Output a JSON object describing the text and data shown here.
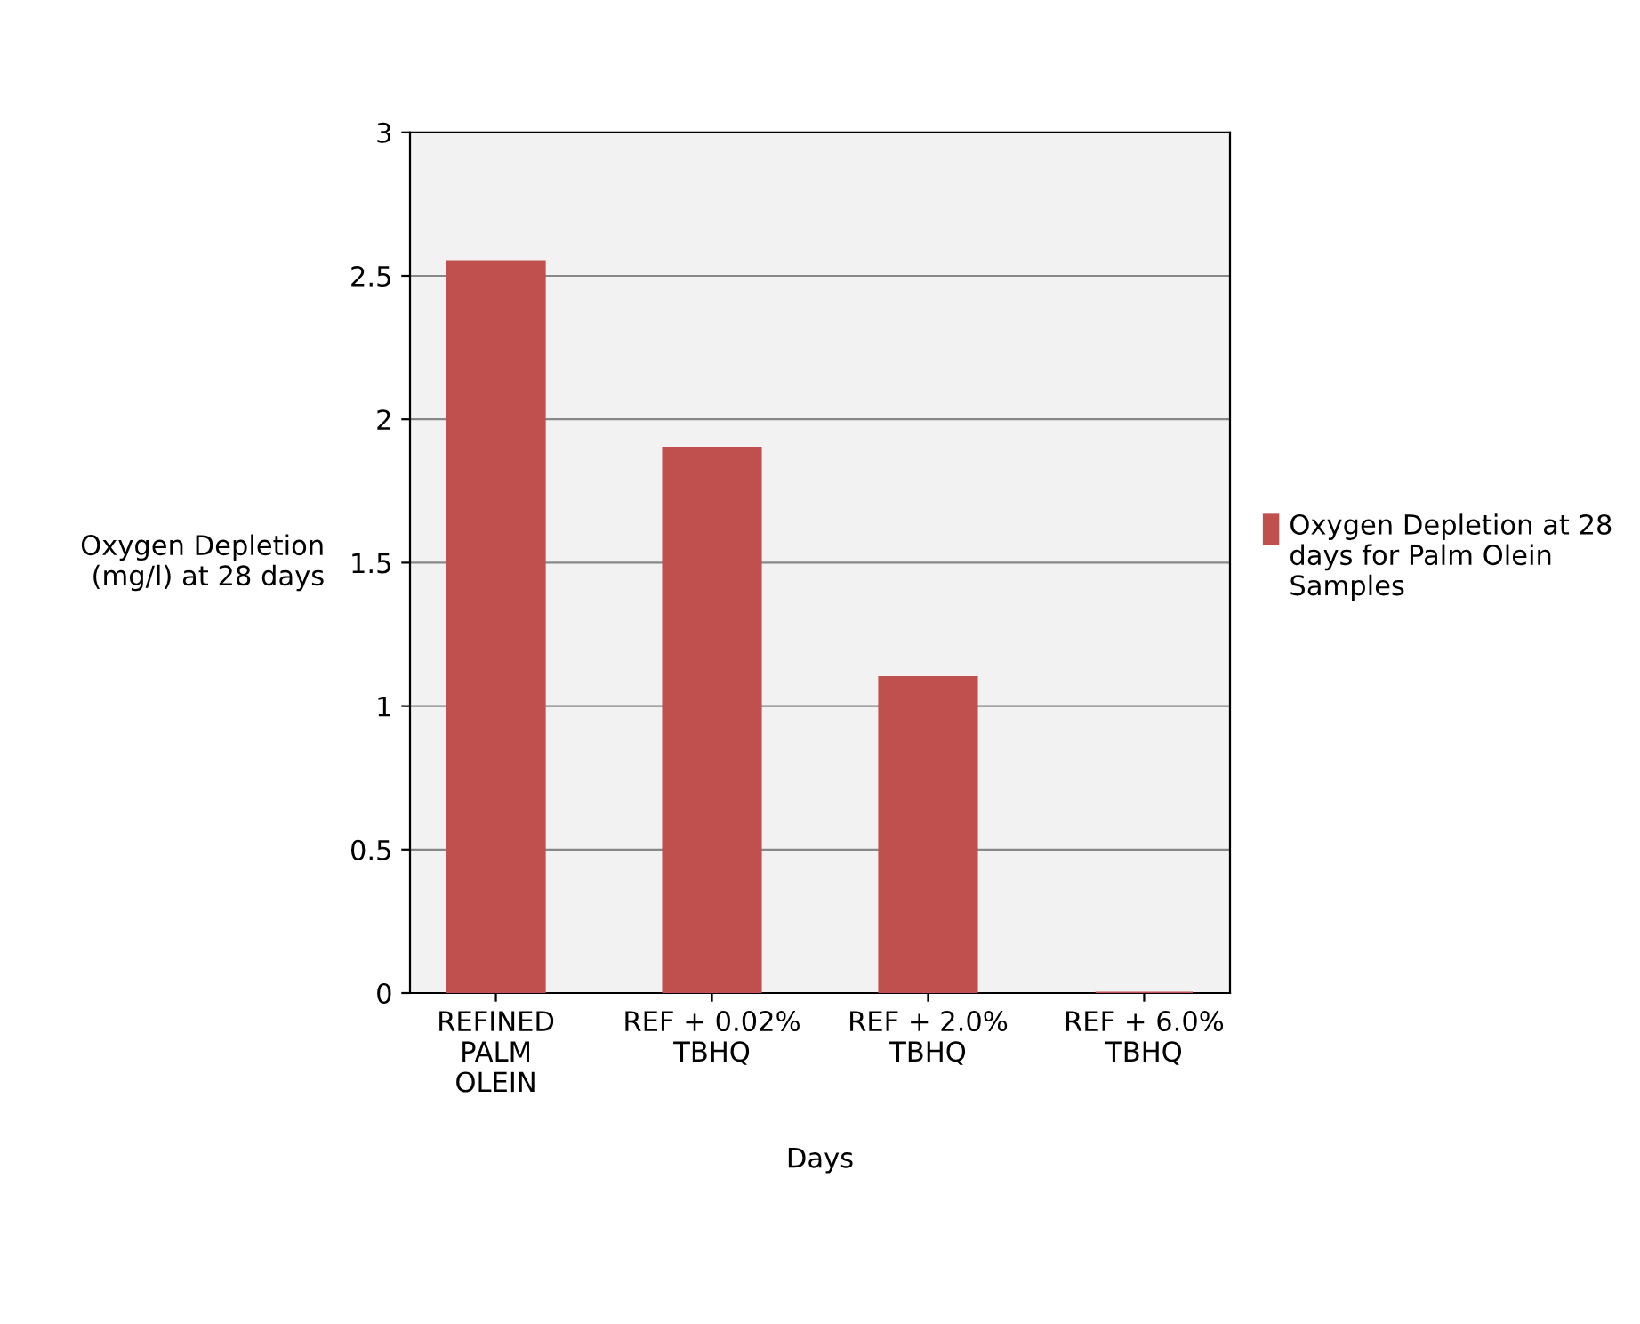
{
  "chart_data": {
    "type": "bar",
    "categories": [
      "REFINED\nPALM\nOLEIN",
      "REF + 0.02%\nTBHQ",
      "REF + 2.0%\nTBHQ",
      "REF + 6.0%\nTBHQ"
    ],
    "series": [
      {
        "name": "Oxygen Depletion at 28 days for Palm Olein Samples",
        "color": "#c0504d",
        "values": [
          2.55,
          1.9,
          1.1,
          0
        ]
      }
    ],
    "xlabel": "Days",
    "ylabel": "Oxygen Depletion\n(mg/l) at 28 days",
    "ylim": [
      0,
      3
    ],
    "yticks": [
      0,
      0.5,
      1,
      1.5,
      2,
      2.5,
      3
    ],
    "grid": "y",
    "legend": "right"
  }
}
